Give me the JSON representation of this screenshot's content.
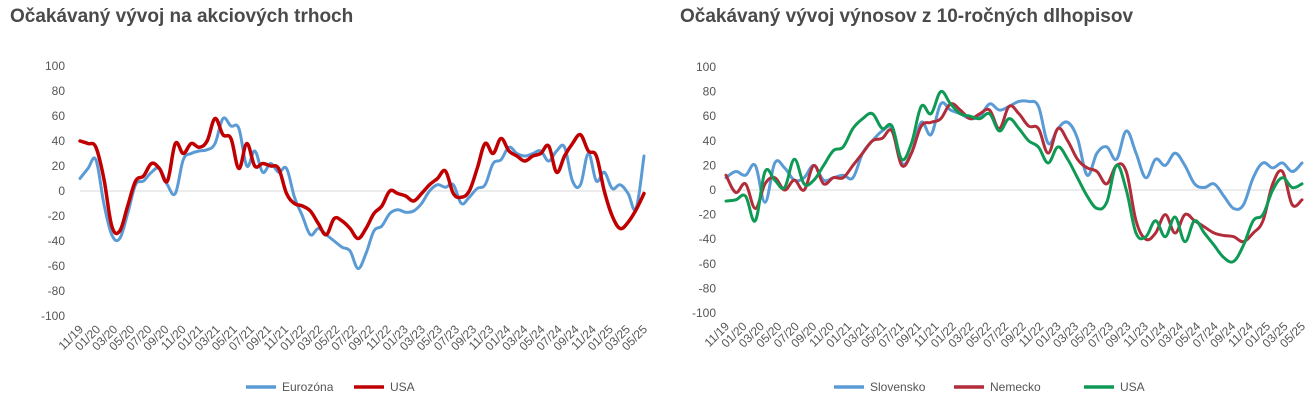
{
  "chart_data": [
    {
      "type": "line",
      "title": "Očakávaný vývoj na akciových trhoch",
      "xlabel": "",
      "ylabel": "",
      "ylim": [
        -100,
        100
      ],
      "yticks": [
        -100,
        -80,
        -60,
        -40,
        -20,
        0,
        20,
        40,
        60,
        80,
        100
      ],
      "x_tick_labels": [
        "11/19",
        "01/20",
        "03/20",
        "05/20",
        "07/20",
        "09/20",
        "11/20",
        "01/21",
        "03/21",
        "05/21",
        "07/21",
        "09/21",
        "11/21",
        "01/22",
        "03/22",
        "05/22",
        "07/22",
        "09/22",
        "11/22",
        "01/23",
        "03/23",
        "05/23",
        "07/23",
        "09/23",
        "11/23",
        "01/24",
        "03/24",
        "05/24",
        "07/24",
        "09/24",
        "11/24",
        "01/25",
        "03/25",
        "05/25"
      ],
      "grid": false,
      "legend": "bottom",
      "series": [
        {
          "name": "Eurozóna",
          "color": "#5b9bd5",
          "values": [
            10,
            18,
            25,
            -10,
            -35,
            -38,
            -18,
            5,
            8,
            15,
            18,
            5,
            -2,
            25,
            30,
            32,
            33,
            38,
            58,
            52,
            50,
            20,
            32,
            15,
            22,
            15,
            18,
            -5,
            -20,
            -35,
            -30,
            -35,
            -40,
            -45,
            -48,
            -62,
            -50,
            -32,
            -28,
            -18,
            -15,
            -17,
            -16,
            -10,
            0,
            5,
            3,
            5,
            -10,
            -5,
            2,
            5,
            22,
            25,
            35,
            30,
            28,
            30,
            32,
            24,
            32,
            35,
            8,
            5,
            30,
            8,
            15,
            2,
            5,
            -2,
            -14,
            28
          ]
        },
        {
          "name": "USA",
          "color": "#c00000",
          "values": [
            40,
            38,
            35,
            10,
            -28,
            -32,
            -12,
            8,
            12,
            22,
            18,
            8,
            38,
            30,
            38,
            35,
            40,
            58,
            45,
            42,
            18,
            38,
            20,
            22,
            20,
            18,
            -2,
            -10,
            -12,
            -16,
            -26,
            -35,
            -22,
            -24,
            -30,
            -38,
            -30,
            -18,
            -12,
            0,
            -2,
            -4,
            -8,
            -2,
            5,
            10,
            16,
            -2,
            -5,
            0,
            18,
            38,
            30,
            42,
            32,
            28,
            24,
            28,
            30,
            36,
            15,
            28,
            38,
            45,
            32,
            28,
            0,
            -20,
            -30,
            -25,
            -15,
            -2
          ]
        }
      ]
    },
    {
      "type": "line",
      "title": "Očakávaný vývoj výnosov z 10-ročných dlhopisov",
      "xlabel": "",
      "ylabel": "",
      "ylim": [
        -100,
        100
      ],
      "yticks": [
        -100,
        -80,
        -60,
        -40,
        -20,
        0,
        20,
        40,
        60,
        80,
        100
      ],
      "x_tick_labels": [
        "11/19",
        "01/20",
        "03/20",
        "05/20",
        "07/20",
        "09/20",
        "11/20",
        "01/21",
        "03/21",
        "05/21",
        "07/21",
        "09/21",
        "11/21",
        "01/22",
        "03/22",
        "05/22",
        "07/22",
        "09/22",
        "11/22",
        "01/23",
        "03/23",
        "05/23",
        "07/23",
        "09/23",
        "11/23",
        "01/24",
        "03/24",
        "05/24",
        "07/24",
        "09/24",
        "11/24",
        "01/25",
        "03/25",
        "05/25"
      ],
      "grid": false,
      "legend": "bottom",
      "series": [
        {
          "name": "Slovensko",
          "color": "#5b9bd5",
          "values": [
            10,
            15,
            12,
            20,
            -10,
            22,
            18,
            8,
            10,
            20,
            8,
            10,
            12,
            10,
            30,
            40,
            48,
            50,
            22,
            30,
            55,
            45,
            70,
            65,
            62,
            58,
            60,
            70,
            65,
            68,
            72,
            72,
            68,
            38,
            50,
            55,
            42,
            12,
            30,
            35,
            25,
            48,
            30,
            10,
            25,
            20,
            30,
            20,
            5,
            2,
            5,
            -5,
            -15,
            -12,
            10,
            22,
            18,
            22,
            15,
            22
          ]
        },
        {
          "name": "Nemecko",
          "color": "#b22c3a",
          "values": [
            12,
            -2,
            5,
            -15,
            5,
            10,
            0,
            8,
            0,
            20,
            5,
            10,
            10,
            20,
            30,
            40,
            42,
            48,
            20,
            30,
            52,
            55,
            58,
            70,
            65,
            58,
            62,
            65,
            50,
            68,
            62,
            52,
            50,
            30,
            50,
            40,
            25,
            18,
            15,
            5,
            20,
            15,
            -25,
            -40,
            -35,
            -20,
            -35,
            -20,
            -25,
            -30,
            -35,
            -37,
            -38,
            -42,
            -35,
            -25,
            5,
            15,
            -12,
            -8
          ]
        },
        {
          "name": "USA",
          "color": "#0e9a55",
          "values": [
            -9,
            -8,
            -5,
            -25,
            15,
            8,
            2,
            25,
            5,
            8,
            20,
            32,
            35,
            50,
            58,
            62,
            50,
            52,
            25,
            38,
            68,
            62,
            80,
            70,
            62,
            60,
            58,
            62,
            48,
            58,
            50,
            40,
            35,
            22,
            35,
            25,
            10,
            -5,
            -15,
            -10,
            20,
            0,
            -35,
            -38,
            -25,
            -38,
            -22,
            -42,
            -25,
            -35,
            -45,
            -55,
            -58,
            -45,
            -25,
            -20,
            0,
            10,
            2,
            5
          ]
        }
      ]
    }
  ]
}
